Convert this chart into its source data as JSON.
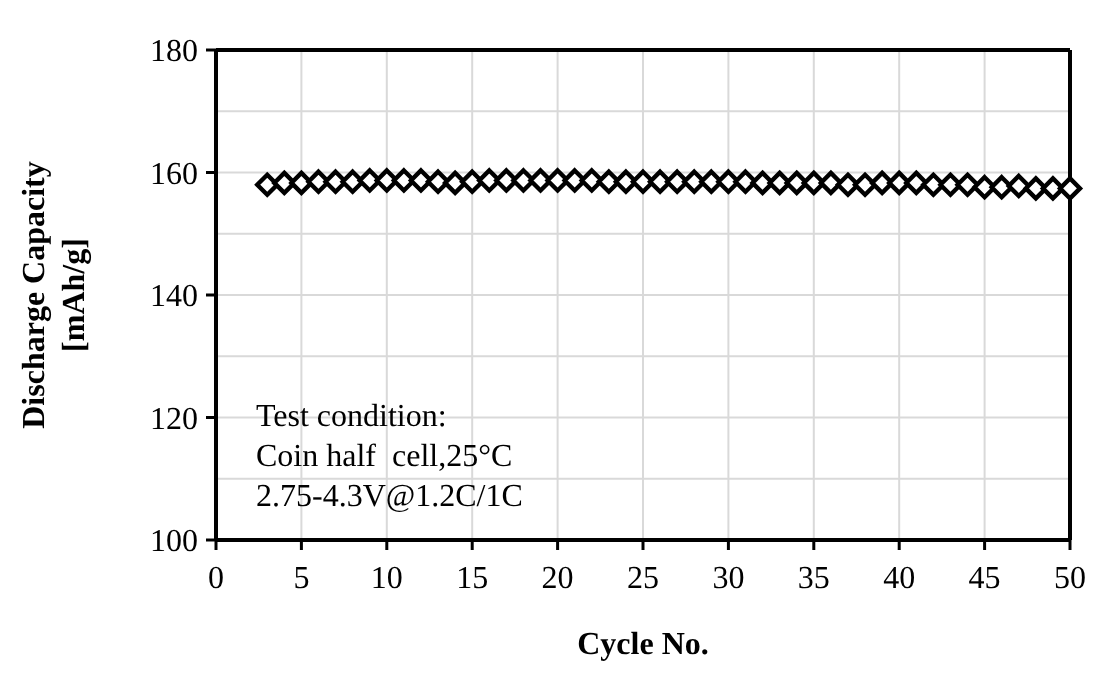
{
  "chart_data": {
    "type": "scatter",
    "xlabel": "Cycle No.",
    "ylabel": "Discharge Capacity\n[mAh/g]",
    "annotations": [
      "Test condition:\nCoin half  cell,25°C\n2.75-4.3V@1.2C/1C"
    ],
    "x": [
      3,
      4,
      5,
      6,
      7,
      8,
      9,
      10,
      11,
      12,
      13,
      14,
      15,
      16,
      17,
      18,
      19,
      20,
      21,
      22,
      23,
      24,
      25,
      26,
      27,
      28,
      29,
      30,
      31,
      32,
      33,
      34,
      35,
      36,
      37,
      38,
      39,
      40,
      41,
      42,
      43,
      44,
      45,
      46,
      47,
      48,
      49,
      50
    ],
    "series": [
      {
        "color": "#000000",
        "values": [
          158.0,
          158.3,
          158.3,
          158.5,
          158.5,
          158.5,
          158.7,
          158.7,
          158.7,
          158.7,
          158.5,
          158.3,
          158.5,
          158.7,
          158.7,
          158.7,
          158.7,
          158.7,
          158.7,
          158.7,
          158.5,
          158.5,
          158.5,
          158.5,
          158.5,
          158.5,
          158.5,
          158.5,
          158.5,
          158.3,
          158.3,
          158.3,
          158.3,
          158.3,
          158.0,
          158.0,
          158.3,
          158.3,
          158.3,
          158.0,
          158.0,
          158.0,
          157.6,
          157.6,
          157.8,
          157.4,
          157.4,
          157.4
        ]
      }
    ],
    "xlim": [
      0,
      50
    ],
    "xticks": [
      0,
      5,
      10,
      15,
      20,
      25,
      30,
      35,
      40,
      45,
      50
    ],
    "ylim": [
      100,
      180
    ],
    "yticks": [
      100,
      {
        "value": 110,
        "label": null
      },
      120,
      {
        "value": 130,
        "label": null
      },
      140,
      {
        "value": 150,
        "label": null
      },
      160,
      {
        "value": 170,
        "label": null
      },
      180
    ],
    "grid": true,
    "marker": "diamond"
  }
}
